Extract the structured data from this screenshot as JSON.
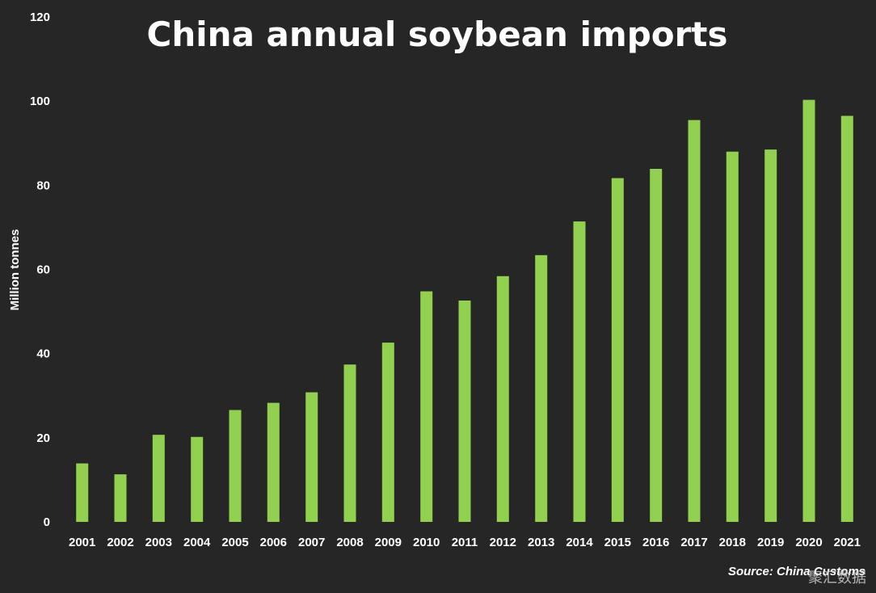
{
  "chart_data": {
    "type": "bar",
    "title": "China annual soybean imports",
    "ylabel": "Million tonnes",
    "xlabel": "",
    "ylim": [
      0,
      120
    ],
    "yticks": [
      0,
      20,
      40,
      60,
      80,
      100,
      120
    ],
    "grid": false,
    "categories": [
      "2001",
      "2002",
      "2003",
      "2004",
      "2005",
      "2006",
      "2007",
      "2008",
      "2009",
      "2010",
      "2011",
      "2012",
      "2013",
      "2014",
      "2015",
      "2016",
      "2017",
      "2018",
      "2019",
      "2020",
      "2021"
    ],
    "values": [
      13.9,
      11.3,
      20.7,
      20.2,
      26.6,
      28.3,
      30.8,
      37.4,
      42.6,
      54.8,
      52.6,
      58.4,
      63.4,
      71.4,
      81.7,
      83.9,
      95.5,
      88.0,
      88.5,
      100.3,
      96.5
    ],
    "bar_color": "#92d050",
    "background_color": "#262626",
    "text_color": "#ffffff"
  },
  "source": "Source: China Customs",
  "watermark": "聚汇数据"
}
